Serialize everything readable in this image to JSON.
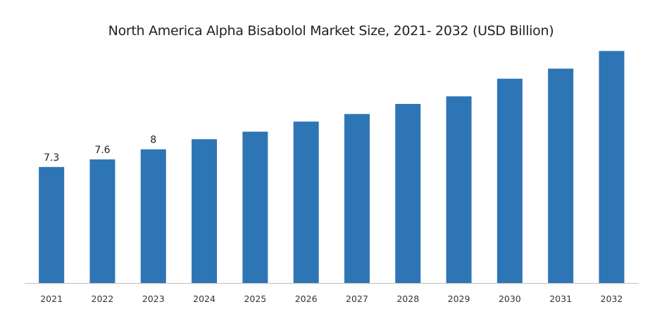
{
  "chart_data": {
    "type": "bar",
    "title": "North America Alpha Bisabolol Market Size, 2021- 2032 (USD Billion)",
    "xlabel": "",
    "ylabel": "",
    "categories": [
      "2021",
      "2022",
      "2023",
      "2024",
      "2025",
      "2026",
      "2027",
      "2028",
      "2029",
      "2030",
      "2031",
      "2032"
    ],
    "values": [
      7.3,
      7.6,
      8,
      8.4,
      8.7,
      9.1,
      9.4,
      9.8,
      10.1,
      10.8,
      11.2,
      11.9
    ],
    "data_labels": [
      "7.3",
      "7.6",
      "8",
      null,
      null,
      null,
      null,
      null,
      null,
      null,
      null,
      null
    ],
    "ylim": [
      2.7,
      12.25
    ],
    "grid": false,
    "y_axis_visible": false,
    "legend": "none",
    "bar_color": "#2e75b6",
    "axis_color": "#bfbfbf"
  }
}
